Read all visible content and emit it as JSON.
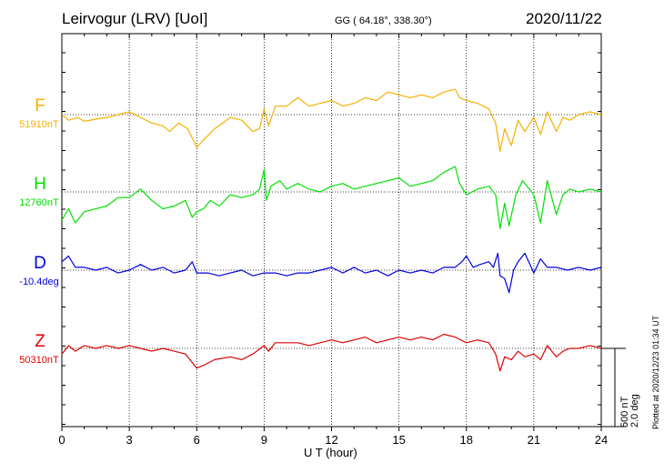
{
  "header": {
    "station": "Leirvogur (LRV)  [UoI]",
    "coords": "GG ( 64.18°, 338.30°)",
    "date": "2020/11/22"
  },
  "footer": {
    "plotted": "Plotted at 2020/12/23 01:34 UT"
  },
  "scale": {
    "lines": [
      "500 nT",
      "2.0 deg"
    ]
  },
  "chart_data": {
    "type": "line",
    "xlabel": "U T (hour)",
    "xlim": [
      0,
      24
    ],
    "xticks": [
      0,
      3,
      6,
      9,
      12,
      15,
      18,
      21,
      24
    ],
    "grid": true,
    "scale_bar": "500 nT / 2.0 deg",
    "series": [
      {
        "name": "F",
        "baseline_label": "51910nT",
        "color": "#f5b000",
        "points": [
          [
            0,
            0
          ],
          [
            0.3,
            -10
          ],
          [
            0.7,
            -5
          ],
          [
            1,
            -12
          ],
          [
            1.5,
            -8
          ],
          [
            2,
            -5
          ],
          [
            2.5,
            0
          ],
          [
            3,
            5
          ],
          [
            3.5,
            -5
          ],
          [
            4,
            -15
          ],
          [
            4.5,
            -20
          ],
          [
            4.8,
            -30
          ],
          [
            5.2,
            -15
          ],
          [
            5.6,
            -25
          ],
          [
            6,
            -58
          ],
          [
            6.3,
            -45
          ],
          [
            6.8,
            -25
          ],
          [
            7.5,
            -5
          ],
          [
            8,
            -10
          ],
          [
            8.5,
            -30
          ],
          [
            8.8,
            -25
          ],
          [
            9,
            10
          ],
          [
            9.2,
            -20
          ],
          [
            9.5,
            15
          ],
          [
            10,
            15
          ],
          [
            10.5,
            30
          ],
          [
            11,
            15
          ],
          [
            11.5,
            20
          ],
          [
            12,
            25
          ],
          [
            12.5,
            15
          ],
          [
            13,
            20
          ],
          [
            13.5,
            30
          ],
          [
            14,
            25
          ],
          [
            14.5,
            40
          ],
          [
            15,
            35
          ],
          [
            15.5,
            30
          ],
          [
            16,
            35
          ],
          [
            16.5,
            30
          ],
          [
            17,
            40
          ],
          [
            17.5,
            45
          ],
          [
            17.7,
            30
          ],
          [
            18,
            25
          ],
          [
            18.5,
            20
          ],
          [
            19,
            10
          ],
          [
            19.3,
            -15
          ],
          [
            19.5,
            -65
          ],
          [
            19.7,
            -25
          ],
          [
            20,
            -55
          ],
          [
            20.3,
            -10
          ],
          [
            20.6,
            -30
          ],
          [
            21,
            -5
          ],
          [
            21.3,
            -35
          ],
          [
            21.6,
            5
          ],
          [
            22,
            -30
          ],
          [
            22.3,
            -5
          ],
          [
            22.6,
            -10
          ],
          [
            23,
            0
          ],
          [
            23.5,
            5
          ],
          [
            24,
            0
          ]
        ]
      },
      {
        "name": "H",
        "baseline_label": "12760nT",
        "color": "#00e000",
        "points": [
          [
            0,
            -50
          ],
          [
            0.3,
            -30
          ],
          [
            0.6,
            -55
          ],
          [
            1,
            -35
          ],
          [
            1.5,
            -30
          ],
          [
            2,
            -25
          ],
          [
            2.5,
            -10
          ],
          [
            3,
            -10
          ],
          [
            3.5,
            5
          ],
          [
            4,
            -15
          ],
          [
            4.5,
            -30
          ],
          [
            5,
            -25
          ],
          [
            5.5,
            -15
          ],
          [
            5.8,
            -45
          ],
          [
            6,
            -35
          ],
          [
            6.3,
            -30
          ],
          [
            6.6,
            -15
          ],
          [
            7,
            -25
          ],
          [
            7.5,
            -5
          ],
          [
            8,
            -10
          ],
          [
            8.5,
            -5
          ],
          [
            8.8,
            5
          ],
          [
            9,
            40
          ],
          [
            9.1,
            -15
          ],
          [
            9.3,
            10
          ],
          [
            9.7,
            20
          ],
          [
            10,
            5
          ],
          [
            10.5,
            15
          ],
          [
            11,
            5
          ],
          [
            11.5,
            0
          ],
          [
            12,
            10
          ],
          [
            12.5,
            15
          ],
          [
            13,
            5
          ],
          [
            13.5,
            10
          ],
          [
            14,
            15
          ],
          [
            14.5,
            20
          ],
          [
            15,
            25
          ],
          [
            15.5,
            10
          ],
          [
            16,
            15
          ],
          [
            16.5,
            20
          ],
          [
            17,
            35
          ],
          [
            17.5,
            45
          ],
          [
            17.7,
            15
          ],
          [
            18,
            -5
          ],
          [
            18.5,
            5
          ],
          [
            19,
            10
          ],
          [
            19.3,
            -5
          ],
          [
            19.5,
            -65
          ],
          [
            19.7,
            -20
          ],
          [
            19.9,
            -60
          ],
          [
            20.2,
            -5
          ],
          [
            20.5,
            20
          ],
          [
            21,
            -5
          ],
          [
            21.3,
            -55
          ],
          [
            21.6,
            20
          ],
          [
            22,
            -40
          ],
          [
            22.3,
            -5
          ],
          [
            22.6,
            5
          ],
          [
            23,
            0
          ],
          [
            23.5,
            5
          ],
          [
            24,
            0
          ]
        ]
      },
      {
        "name": "D",
        "baseline_label": "-10.4deg",
        "color": "#0000e0",
        "points": [
          [
            0,
            15
          ],
          [
            0.3,
            25
          ],
          [
            0.6,
            5
          ],
          [
            1,
            5
          ],
          [
            1.5,
            0
          ],
          [
            2,
            5
          ],
          [
            2.5,
            -5
          ],
          [
            3,
            0
          ],
          [
            3.5,
            10
          ],
          [
            4,
            0
          ],
          [
            4.5,
            5
          ],
          [
            5,
            -5
          ],
          [
            5.5,
            0
          ],
          [
            5.8,
            15
          ],
          [
            6,
            -5
          ],
          [
            6.5,
            -5
          ],
          [
            7,
            -10
          ],
          [
            7.5,
            -5
          ],
          [
            8,
            0
          ],
          [
            8.5,
            -10
          ],
          [
            9,
            -5
          ],
          [
            9.5,
            -5
          ],
          [
            10,
            -10
          ],
          [
            10.5,
            -5
          ],
          [
            11,
            -5
          ],
          [
            11.5,
            0
          ],
          [
            12,
            5
          ],
          [
            12.5,
            -5
          ],
          [
            13,
            5
          ],
          [
            13.5,
            -5
          ],
          [
            14,
            0
          ],
          [
            14.5,
            -10
          ],
          [
            15,
            0
          ],
          [
            15.5,
            -5
          ],
          [
            16,
            0
          ],
          [
            16.5,
            -5
          ],
          [
            17,
            5
          ],
          [
            17.5,
            5
          ],
          [
            17.8,
            15
          ],
          [
            18,
            25
          ],
          [
            18.3,
            5
          ],
          [
            18.6,
            10
          ],
          [
            19,
            15
          ],
          [
            19.2,
            5
          ],
          [
            19.4,
            30
          ],
          [
            19.5,
            -10
          ],
          [
            19.7,
            -15
          ],
          [
            19.9,
            -40
          ],
          [
            20.1,
            0
          ],
          [
            20.3,
            15
          ],
          [
            20.6,
            30
          ],
          [
            21,
            -5
          ],
          [
            21.3,
            20
          ],
          [
            21.6,
            5
          ],
          [
            22,
            5
          ],
          [
            22.5,
            0
          ],
          [
            23,
            5
          ],
          [
            23.5,
            0
          ],
          [
            24,
            5
          ]
        ]
      },
      {
        "name": "Z",
        "baseline_label": "50310nT",
        "color": "#e00000",
        "points": [
          [
            0,
            -10
          ],
          [
            0.3,
            5
          ],
          [
            0.6,
            -5
          ],
          [
            1,
            5
          ],
          [
            1.5,
            0
          ],
          [
            2,
            5
          ],
          [
            2.5,
            0
          ],
          [
            3,
            5
          ],
          [
            3.5,
            0
          ],
          [
            4,
            -5
          ],
          [
            4.5,
            0
          ],
          [
            5,
            -5
          ],
          [
            5.5,
            -10
          ],
          [
            6,
            -35
          ],
          [
            6.3,
            -30
          ],
          [
            6.8,
            -20
          ],
          [
            7.5,
            -15
          ],
          [
            8,
            -20
          ],
          [
            8.5,
            -10
          ],
          [
            9,
            5
          ],
          [
            9.2,
            -5
          ],
          [
            9.5,
            10
          ],
          [
            10,
            10
          ],
          [
            10.5,
            10
          ],
          [
            11,
            5
          ],
          [
            11.5,
            10
          ],
          [
            12,
            15
          ],
          [
            12.5,
            10
          ],
          [
            13,
            15
          ],
          [
            13.5,
            20
          ],
          [
            14,
            10
          ],
          [
            14.5,
            15
          ],
          [
            15,
            20
          ],
          [
            15.5,
            15
          ],
          [
            16,
            20
          ],
          [
            16.5,
            15
          ],
          [
            17,
            25
          ],
          [
            17.5,
            20
          ],
          [
            18,
            10
          ],
          [
            18.5,
            15
          ],
          [
            19,
            10
          ],
          [
            19.3,
            -10
          ],
          [
            19.5,
            -40
          ],
          [
            19.7,
            -15
          ],
          [
            20,
            -20
          ],
          [
            20.3,
            -5
          ],
          [
            20.6,
            -15
          ],
          [
            21,
            -10
          ],
          [
            21.3,
            -20
          ],
          [
            21.6,
            5
          ],
          [
            22,
            -15
          ],
          [
            22.3,
            -5
          ],
          [
            22.6,
            0
          ],
          [
            23,
            0
          ],
          [
            23.5,
            5
          ],
          [
            24,
            0
          ]
        ]
      }
    ]
  }
}
